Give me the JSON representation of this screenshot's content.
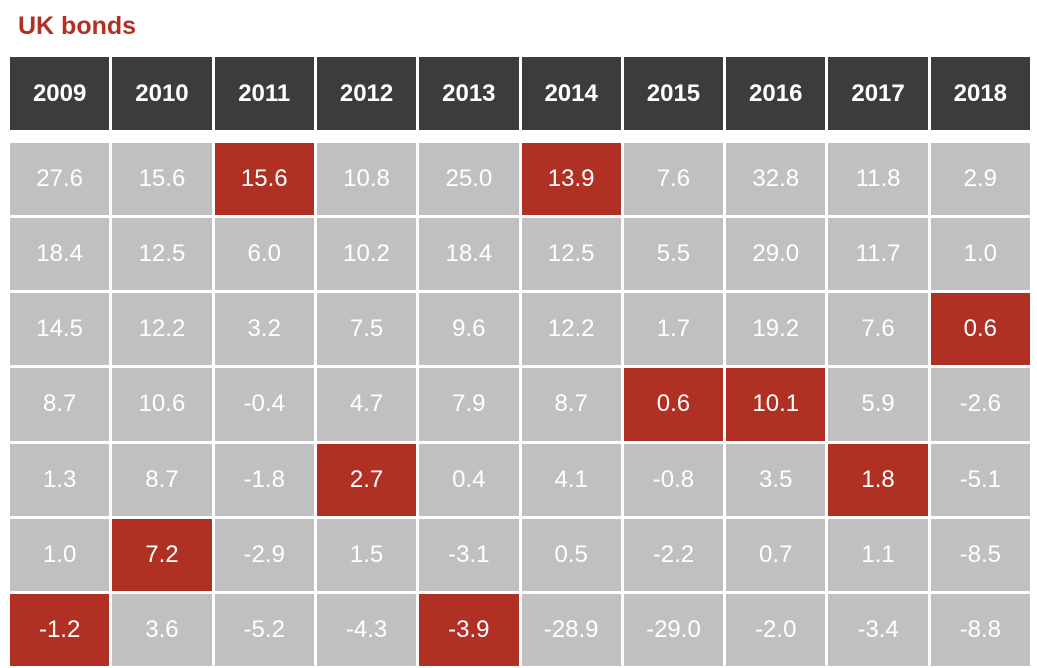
{
  "title": "UK bonds",
  "chart_data": {
    "type": "table",
    "title": "UK bonds",
    "columns": [
      "2009",
      "2010",
      "2011",
      "2012",
      "2013",
      "2014",
      "2015",
      "2016",
      "2017",
      "2018"
    ],
    "rows": [
      [
        "27.6",
        "15.6",
        "15.6",
        "10.8",
        "25.0",
        "13.9",
        "7.6",
        "32.8",
        "11.8",
        "2.9"
      ],
      [
        "18.4",
        "12.5",
        "6.0",
        "10.2",
        "18.4",
        "12.5",
        "5.5",
        "29.0",
        "11.7",
        "1.0"
      ],
      [
        "14.5",
        "12.2",
        "3.2",
        "7.5",
        "9.6",
        "12.2",
        "1.7",
        "19.2",
        "7.6",
        "0.6"
      ],
      [
        "8.7",
        "10.6",
        "-0.4",
        "4.7",
        "7.9",
        "8.7",
        "0.6",
        "10.1",
        "5.9",
        "-2.6"
      ],
      [
        "1.3",
        "8.7",
        "-1.8",
        "2.7",
        "0.4",
        "4.1",
        "-0.8",
        "3.5",
        "1.8",
        "-5.1"
      ],
      [
        "1.0",
        "7.2",
        "-2.9",
        "1.5",
        "-3.1",
        "0.5",
        "-2.2",
        "0.7",
        "1.1",
        "-8.5"
      ],
      [
        "-1.2",
        "3.6",
        "-5.2",
        "-4.3",
        "-3.9",
        "-28.9",
        "-29.0",
        "-2.0",
        "-3.4",
        "-8.8"
      ]
    ],
    "highlight_color": "#b03024",
    "cell_color": "#c0c0c0",
    "header_color": "#3c3c3c",
    "highlighted_row_by_column": [
      6,
      5,
      0,
      4,
      6,
      0,
      3,
      3,
      4,
      2
    ]
  }
}
